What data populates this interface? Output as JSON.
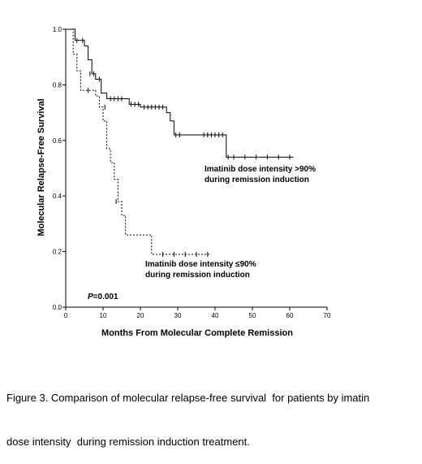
{
  "chart_data": {
    "type": "line",
    "subtype": "kaplan-meier",
    "xlabel": "Months From Molecular Complete Remission",
    "ylabel": "Molecular Relapse-Free Survival",
    "xlim": [
      0,
      70
    ],
    "ylim": [
      0,
      1.0
    ],
    "xticks": [
      "0",
      "10",
      "20",
      "30",
      "40",
      "50",
      "60",
      "70"
    ],
    "yticks": [
      "0.0",
      "0.2",
      "0.4",
      "0.6",
      "0.8",
      "1.0"
    ],
    "grid": false,
    "annotation_p": "=0.001",
    "annotation_p_prefix": "P",
    "series": [
      {
        "name_lines": [
          "Imatinib dose intensity >90%",
          "during remission induction"
        ],
        "line_style": "solid",
        "steps": [
          [
            0,
            1.0
          ],
          [
            2.5,
            1.0
          ],
          [
            2.5,
            0.96
          ],
          [
            5,
            0.96
          ],
          [
            5,
            0.94
          ],
          [
            6,
            0.94
          ],
          [
            6,
            0.89
          ],
          [
            7,
            0.89
          ],
          [
            7,
            0.84
          ],
          [
            8,
            0.84
          ],
          [
            8,
            0.82
          ],
          [
            9.5,
            0.82
          ],
          [
            9.5,
            0.77
          ],
          [
            11,
            0.77
          ],
          [
            11,
            0.75
          ],
          [
            17,
            0.75
          ],
          [
            17,
            0.73
          ],
          [
            20,
            0.73
          ],
          [
            20,
            0.72
          ],
          [
            27,
            0.72
          ],
          [
            27,
            0.7
          ],
          [
            28,
            0.7
          ],
          [
            28,
            0.67
          ],
          [
            29,
            0.67
          ],
          [
            29,
            0.62
          ],
          [
            43,
            0.62
          ],
          [
            43,
            0.54
          ],
          [
            61,
            0.54
          ]
        ],
        "censors": [
          [
            3,
            0.96
          ],
          [
            4.5,
            0.96
          ],
          [
            6.5,
            0.84
          ],
          [
            7.5,
            0.84
          ],
          [
            9,
            0.82
          ],
          [
            12,
            0.75
          ],
          [
            13,
            0.75
          ],
          [
            14,
            0.75
          ],
          [
            15,
            0.75
          ],
          [
            17.5,
            0.73
          ],
          [
            18.5,
            0.73
          ],
          [
            19.5,
            0.73
          ],
          [
            21,
            0.72
          ],
          [
            22,
            0.72
          ],
          [
            23,
            0.72
          ],
          [
            24,
            0.72
          ],
          [
            25,
            0.72
          ],
          [
            26,
            0.72
          ],
          [
            29.5,
            0.62
          ],
          [
            30.5,
            0.62
          ],
          [
            37,
            0.62
          ],
          [
            38,
            0.62
          ],
          [
            39,
            0.62
          ],
          [
            40,
            0.62
          ],
          [
            41,
            0.62
          ],
          [
            42,
            0.62
          ],
          [
            43.5,
            0.54
          ],
          [
            45,
            0.54
          ],
          [
            48,
            0.54
          ],
          [
            51,
            0.54
          ],
          [
            54,
            0.54
          ],
          [
            57,
            0.54
          ],
          [
            60,
            0.54
          ]
        ]
      },
      {
        "name_lines": [
          "Imatinib dose intensity ≤90%",
          "during remission induction"
        ],
        "line_style": "dashed",
        "steps": [
          [
            0,
            1.0
          ],
          [
            2,
            1.0
          ],
          [
            2,
            0.91
          ],
          [
            3,
            0.91
          ],
          [
            3,
            0.85
          ],
          [
            4,
            0.85
          ],
          [
            4,
            0.78
          ],
          [
            8,
            0.78
          ],
          [
            8,
            0.76
          ],
          [
            9,
            0.76
          ],
          [
            9,
            0.72
          ],
          [
            10,
            0.72
          ],
          [
            10,
            0.67
          ],
          [
            11,
            0.67
          ],
          [
            11,
            0.57
          ],
          [
            12,
            0.57
          ],
          [
            12,
            0.52
          ],
          [
            13,
            0.52
          ],
          [
            13,
            0.46
          ],
          [
            14,
            0.46
          ],
          [
            14,
            0.38
          ],
          [
            15,
            0.38
          ],
          [
            15,
            0.33
          ],
          [
            16,
            0.33
          ],
          [
            16,
            0.26
          ],
          [
            23,
            0.26
          ],
          [
            23,
            0.19
          ],
          [
            39,
            0.19
          ]
        ],
        "censors": [
          [
            6,
            0.78
          ],
          [
            10.5,
            0.72
          ],
          [
            13.5,
            0.38
          ],
          [
            26,
            0.19
          ],
          [
            29,
            0.19
          ],
          [
            32,
            0.19
          ],
          [
            35,
            0.19
          ],
          [
            38,
            0.19
          ]
        ]
      }
    ]
  },
  "caption_lines": [
    "Figure 3. Comparison of molecular relapse-free survival  for patients by imatin",
    "dose intensity  during remission induction treatment."
  ]
}
